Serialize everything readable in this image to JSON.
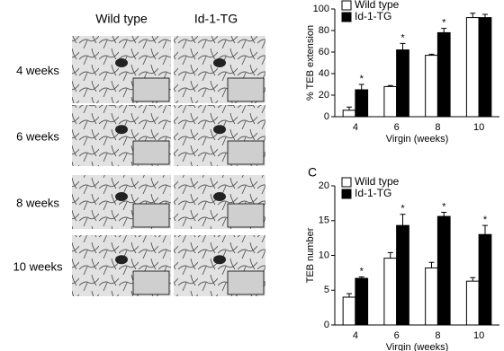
{
  "micrographs": {
    "columns": [
      "Wild type",
      "Id-1-TG"
    ],
    "rows": [
      "4 weeks",
      "6 weeks",
      "8 weeks",
      "10 weeks"
    ]
  },
  "chart_data": [
    {
      "type": "bar",
      "ylabel": "% TEB extension",
      "xlabel": "Virgin (weeks)",
      "categories": [
        "4",
        "6",
        "8",
        "10"
      ],
      "series": [
        {
          "name": "Wild type",
          "color": "#ffffff",
          "values": [
            6,
            28,
            57,
            92
          ],
          "errors": [
            3,
            1,
            1,
            4
          ]
        },
        {
          "name": "Id-1-TG",
          "color": "#000000",
          "values": [
            25,
            62,
            78,
            92
          ],
          "errors": [
            5,
            6,
            4,
            3
          ]
        }
      ],
      "significance": [
        "*",
        "*",
        "*",
        null
      ],
      "ylim": [
        0,
        100
      ],
      "yticks": [
        0,
        20,
        40,
        60,
        80,
        100
      ]
    },
    {
      "type": "bar",
      "panel_label": "C",
      "ylabel": "TEB number",
      "xlabel": "Virgin (weeks)",
      "categories": [
        "4",
        "6",
        "8",
        "10"
      ],
      "series": [
        {
          "name": "Wild type",
          "color": "#ffffff",
          "values": [
            4.0,
            9.6,
            8.2,
            6.3
          ],
          "errors": [
            0.5,
            0.8,
            0.8,
            0.5
          ]
        },
        {
          "name": "Id-1-TG",
          "color": "#000000",
          "values": [
            6.7,
            14.3,
            15.6,
            13.0
          ],
          "errors": [
            0.2,
            1.6,
            0.6,
            1.3
          ]
        }
      ],
      "significance": [
        "*",
        "*",
        "*",
        "*"
      ],
      "ylim": [
        0,
        20
      ],
      "yticks": [
        0,
        5,
        10,
        15,
        20
      ]
    }
  ]
}
